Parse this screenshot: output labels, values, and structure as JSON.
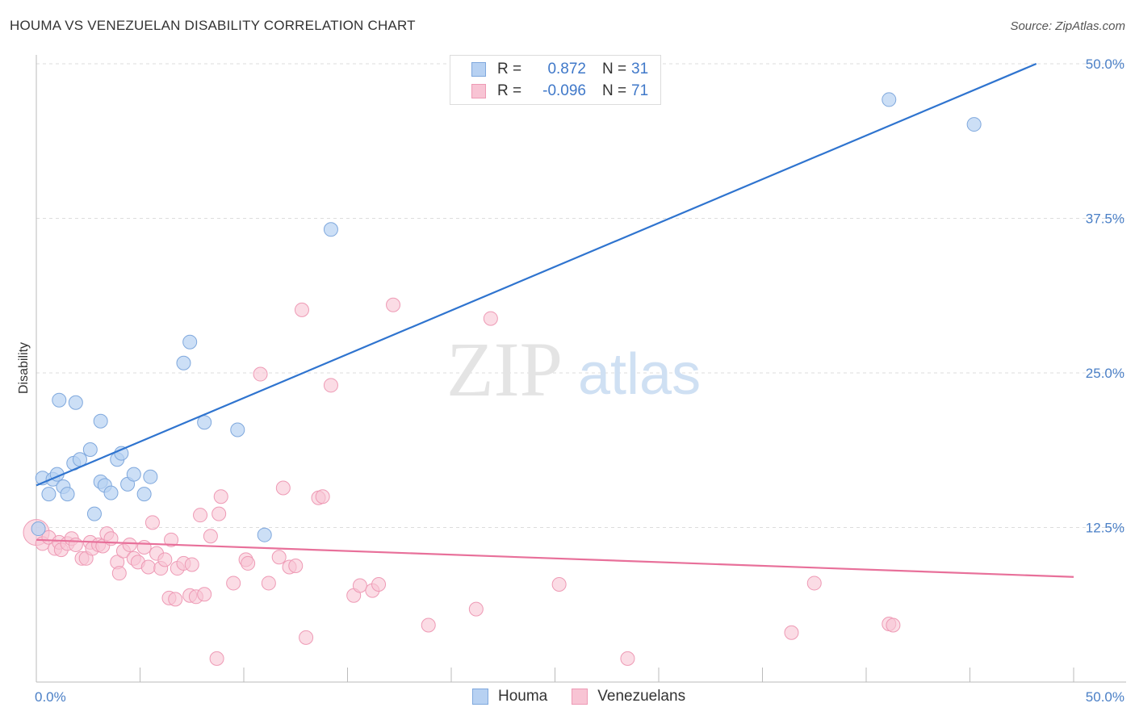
{
  "title": "HOUMA VS VENEZUELAN DISABILITY CORRELATION CHART",
  "source": "Source: ZipAtlas.com",
  "watermark": {
    "zip": "ZIP",
    "atlas": "atlas"
  },
  "colors": {
    "houma_fill": "#b7d1f2",
    "houma_stroke": "#7fa8dd",
    "houma_line": "#2f74cf",
    "venez_fill": "#f8c4d4",
    "venez_stroke": "#ee9ab5",
    "venez_line": "#e8709a",
    "tick_text": "#4a7fc6",
    "grid": "#dddddd"
  },
  "legend": {
    "rows": [
      {
        "r_label": "R =",
        "r_value": "0.872",
        "n_label": "N =",
        "n_value": "31"
      },
      {
        "r_label": "R =",
        "r_value": "-0.096",
        "n_label": "N =",
        "n_value": "71"
      }
    ],
    "bottom": [
      "Houma",
      "Venezuelans"
    ]
  },
  "chart_data": {
    "type": "scatter",
    "title": "HOUMA VS VENEZUELAN DISABILITY CORRELATION CHART",
    "xlabel": "",
    "ylabel": "Disability",
    "xlim": [
      0,
      50
    ],
    "ylim": [
      0,
      50
    ],
    "x_tick_labels": [
      "0.0%",
      "50.0%"
    ],
    "y_ticks": [
      12.5,
      25.0,
      37.5,
      50.0
    ],
    "y_tick_labels": [
      "12.5%",
      "25.0%",
      "37.5%",
      "50.0%"
    ],
    "grid": true,
    "legend_position": "top-center",
    "series": [
      {
        "name": "Houma",
        "r": 0.872,
        "n": 31,
        "trend": {
          "x": [
            0,
            48.2
          ],
          "y": [
            15.9,
            50.0
          ]
        },
        "points": [
          [
            0.1,
            12.4
          ],
          [
            0.3,
            16.5
          ],
          [
            0.6,
            15.2
          ],
          [
            0.8,
            16.4
          ],
          [
            1.0,
            16.8
          ],
          [
            1.1,
            22.8
          ],
          [
            1.3,
            15.8
          ],
          [
            1.5,
            15.2
          ],
          [
            1.8,
            17.7
          ],
          [
            1.9,
            22.6
          ],
          [
            2.1,
            18.0
          ],
          [
            2.6,
            18.8
          ],
          [
            2.8,
            13.6
          ],
          [
            3.1,
            16.2
          ],
          [
            3.1,
            21.1
          ],
          [
            3.3,
            15.9
          ],
          [
            3.6,
            15.3
          ],
          [
            3.9,
            18.0
          ],
          [
            4.1,
            18.5
          ],
          [
            4.4,
            16.0
          ],
          [
            4.7,
            16.8
          ],
          [
            5.2,
            15.2
          ],
          [
            5.5,
            16.6
          ],
          [
            7.1,
            25.8
          ],
          [
            7.4,
            27.5
          ],
          [
            8.1,
            21.0
          ],
          [
            9.7,
            20.4
          ],
          [
            11.0,
            11.9
          ],
          [
            14.2,
            36.6
          ],
          [
            41.1,
            47.1
          ],
          [
            45.2,
            45.1
          ]
        ]
      },
      {
        "name": "Venezuelans",
        "r": -0.096,
        "n": 71,
        "trend": {
          "x": [
            0,
            50
          ],
          "y": [
            11.5,
            8.5
          ]
        },
        "points": [
          [
            0.0,
            12.1
          ],
          [
            0.3,
            11.2
          ],
          [
            0.6,
            11.7
          ],
          [
            0.9,
            10.8
          ],
          [
            1.1,
            11.3
          ],
          [
            1.2,
            10.7
          ],
          [
            1.5,
            11.2
          ],
          [
            1.7,
            11.6
          ],
          [
            1.9,
            11.1
          ],
          [
            2.2,
            10.0
          ],
          [
            2.4,
            10.0
          ],
          [
            2.6,
            11.3
          ],
          [
            2.7,
            10.8
          ],
          [
            3.0,
            11.1
          ],
          [
            3.2,
            11.0
          ],
          [
            3.4,
            12.0
          ],
          [
            3.6,
            11.6
          ],
          [
            3.9,
            9.7
          ],
          [
            4.0,
            8.8
          ],
          [
            4.2,
            10.6
          ],
          [
            4.5,
            11.1
          ],
          [
            4.7,
            10.0
          ],
          [
            4.9,
            9.7
          ],
          [
            5.2,
            10.9
          ],
          [
            5.4,
            9.3
          ],
          [
            5.6,
            12.9
          ],
          [
            5.8,
            10.4
          ],
          [
            6.0,
            9.2
          ],
          [
            6.2,
            9.9
          ],
          [
            6.4,
            6.8
          ],
          [
            6.5,
            11.5
          ],
          [
            6.7,
            6.7
          ],
          [
            6.8,
            9.2
          ],
          [
            7.1,
            9.6
          ],
          [
            7.4,
            7.0
          ],
          [
            7.5,
            9.5
          ],
          [
            7.7,
            6.9
          ],
          [
            7.9,
            13.5
          ],
          [
            8.1,
            7.1
          ],
          [
            8.4,
            11.8
          ],
          [
            8.8,
            13.6
          ],
          [
            8.9,
            15.0
          ],
          [
            9.5,
            8.0
          ],
          [
            10.1,
            9.9
          ],
          [
            10.2,
            9.6
          ],
          [
            10.8,
            24.9
          ],
          [
            11.2,
            8.0
          ],
          [
            11.7,
            10.1
          ],
          [
            11.9,
            15.7
          ],
          [
            12.2,
            9.3
          ],
          [
            12.5,
            9.4
          ],
          [
            12.8,
            30.1
          ],
          [
            13.0,
            3.6
          ],
          [
            13.6,
            14.9
          ],
          [
            13.8,
            15.0
          ],
          [
            14.2,
            24.0
          ],
          [
            15.3,
            7.0
          ],
          [
            15.6,
            7.8
          ],
          [
            16.2,
            7.4
          ],
          [
            16.5,
            7.9
          ],
          [
            17.2,
            30.5
          ],
          [
            18.9,
            4.6
          ],
          [
            21.2,
            5.9
          ],
          [
            21.9,
            29.4
          ],
          [
            25.2,
            7.9
          ],
          [
            28.5,
            1.9
          ],
          [
            36.4,
            4.0
          ],
          [
            37.5,
            8.0
          ],
          [
            41.1,
            4.7
          ],
          [
            41.3,
            4.6
          ],
          [
            8.7,
            1.9
          ]
        ]
      }
    ]
  }
}
